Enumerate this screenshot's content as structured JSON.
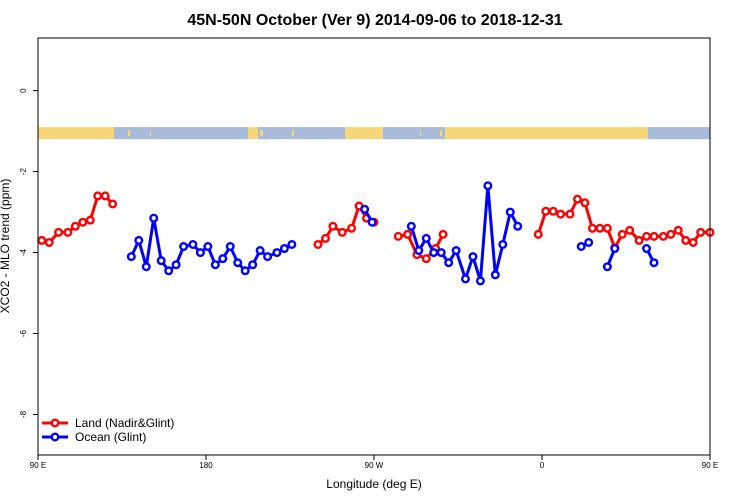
{
  "chart_data": {
    "type": "line",
    "title": "45N-50N October (Ver 9)   2014-09-06 to 2018-12-31",
    "xlabel": "Longitude (deg E)",
    "ylabel": "XCO2 - MLO trend (ppm)",
    "xlim": [
      90,
      450
    ],
    "ylim": [
      -9,
      1.3
    ],
    "x_ticks": [
      {
        "value": 90,
        "label": "90 E"
      },
      {
        "value": 180,
        "label": "180"
      },
      {
        "value": 270,
        "label": "90 W"
      },
      {
        "value": 360,
        "label": "0"
      },
      {
        "value": 450,
        "label": "90 E"
      },
      {
        "value": 540,
        "label": "180"
      }
    ],
    "y_ticks": [
      {
        "value": 0,
        "label": "0"
      },
      {
        "value": -2,
        "label": "-2"
      },
      {
        "value": -4,
        "label": "-4"
      },
      {
        "value": -6,
        "label": "-6"
      },
      {
        "value": -8,
        "label": "-8"
      }
    ],
    "grid": false,
    "legend_position": "bottom-left",
    "land_ocean_strip": {
      "land_color": "#F5D77A",
      "ocean_color": "#A9BBDB",
      "y_center": -1.05
    },
    "series": [
      {
        "name": "Land (Nadir&Glint)",
        "color": "#FF0000",
        "segments": [
          [
            [
              92,
              -3.7
            ],
            [
              96,
              -3.75
            ],
            [
              101,
              -3.5
            ],
            [
              106,
              -3.5
            ],
            [
              110,
              -3.35
            ],
            [
              114,
              -3.25
            ],
            [
              118,
              -3.2
            ],
            [
              122,
              -2.6
            ],
            [
              126,
              -2.6
            ],
            [
              130,
              -2.8
            ]
          ],
          [
            [
              240,
              -3.8
            ],
            [
              244,
              -3.65
            ],
            [
              248,
              -3.35
            ],
            [
              253,
              -3.5
            ],
            [
              258,
              -3.4
            ],
            [
              262,
              -2.85
            ],
            [
              266,
              -3.15
            ],
            [
              270,
              -3.25
            ]
          ],
          [
            [
              283,
              -3.6
            ],
            [
              288,
              -3.55
            ],
            [
              293,
              -4.05
            ],
            [
              298,
              -4.15
            ],
            [
              303,
              -3.9
            ],
            [
              307,
              -3.55
            ]
          ],
          [
            [
              358,
              -3.55
            ],
            [
              362,
              -2.98
            ],
            [
              366,
              -2.98
            ],
            [
              370,
              -3.05
            ],
            [
              375,
              -3.05
            ],
            [
              379,
              -2.68
            ],
            [
              383,
              -2.77
            ],
            [
              387,
              -3.4
            ],
            [
              391,
              -3.4
            ],
            [
              395,
              -3.4
            ],
            [
              399,
              -3.88
            ],
            [
              403,
              -3.55
            ],
            [
              407,
              -3.45
            ],
            [
              412,
              -3.7
            ],
            [
              416,
              -3.6
            ],
            [
              420,
              -3.6
            ],
            [
              425,
              -3.6
            ],
            [
              429,
              -3.55
            ],
            [
              433,
              -3.45
            ],
            [
              437,
              -3.7
            ],
            [
              441,
              -3.75
            ],
            [
              445,
              -3.5
            ],
            [
              450,
              -3.5
            ]
          ]
        ]
      },
      {
        "name": "Ocean (Glint)",
        "color": "#0000FF",
        "segments": [
          [
            [
              140,
              -4.1
            ],
            [
              144,
              -3.7
            ],
            [
              148,
              -4.35
            ],
            [
              152,
              -3.15
            ],
            [
              156,
              -4.2
            ],
            [
              160,
              -4.45
            ],
            [
              164,
              -4.3
            ],
            [
              168,
              -3.85
            ],
            [
              173,
              -3.8
            ],
            [
              177,
              -4.0
            ],
            [
              181,
              -3.85
            ],
            [
              185,
              -4.3
            ],
            [
              189,
              -4.15
            ],
            [
              193,
              -3.85
            ],
            [
              197,
              -4.25
            ],
            [
              201,
              -4.45
            ],
            [
              205,
              -4.3
            ],
            [
              209,
              -3.95
            ],
            [
              213,
              -4.1
            ],
            [
              218,
              -4.0
            ],
            [
              222,
              -3.9
            ],
            [
              226,
              -3.8
            ]
          ],
          [
            [
              265,
              -2.93
            ],
            [
              269,
              -3.25
            ]
          ],
          [
            [
              290,
              -3.35
            ],
            [
              294,
              -3.95
            ],
            [
              298,
              -3.65
            ],
            [
              302,
              -4.0
            ],
            [
              306,
              -4.0
            ],
            [
              310,
              -4.25
            ],
            [
              314,
              -3.95
            ],
            [
              319,
              -4.65
            ],
            [
              323,
              -4.1
            ],
            [
              327,
              -4.7
            ],
            [
              331,
              -2.35
            ],
            [
              335,
              -4.55
            ],
            [
              339,
              -3.8
            ],
            [
              343,
              -3.0
            ],
            [
              347,
              -3.35
            ]
          ],
          [
            [
              381,
              -3.85
            ],
            [
              385,
              -3.75
            ]
          ],
          [
            [
              395,
              -4.35
            ],
            [
              399,
              -3.9
            ]
          ],
          [
            [
              416,
              -3.9
            ],
            [
              420,
              -4.25
            ]
          ]
        ]
      }
    ]
  }
}
